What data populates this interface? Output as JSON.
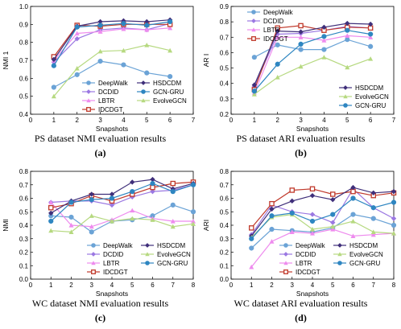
{
  "colors": {
    "DeepWalk": "#6ba3d6",
    "DCDID": "#9b78e2",
    "LBTR": "#ee8bee",
    "IDCDGT": "#c0392b",
    "HSDCDM": "#3f2f7a",
    "EvolveGCN": "#b6d980",
    "GCN-GRU": "#2e86c1"
  },
  "chart_data": [
    {
      "type": "line",
      "panel_label": "(a)",
      "caption": "PS dataset NMI evaluation results",
      "xlabel": "Snapshots",
      "ylabel": "NMI 1",
      "xlim": [
        0,
        7
      ],
      "ylim": [
        0.4,
        1.0
      ],
      "xticks": [
        "0",
        "1",
        "2",
        "3",
        "4",
        "5",
        "6",
        "7"
      ],
      "yticks": [
        "0.4",
        "0.5",
        "0.6",
        "0.7",
        "0.8",
        "0.9",
        "1.0"
      ],
      "legend_position": "bottom-right",
      "x": [
        1,
        2,
        3,
        4,
        5,
        6
      ],
      "series": [
        {
          "name": "DeepWalk",
          "values": [
            0.55,
            0.62,
            0.695,
            0.675,
            0.63,
            0.61
          ]
        },
        {
          "name": "DCDID",
          "values": [
            0.69,
            0.82,
            0.87,
            0.88,
            0.87,
            0.905
          ]
        },
        {
          "name": "LBTR",
          "values": [
            0.7,
            0.85,
            0.86,
            0.875,
            0.87,
            0.88
          ]
        },
        {
          "name": "IDCDGT",
          "values": [
            0.72,
            0.895,
            0.89,
            0.9,
            0.9,
            0.9
          ]
        },
        {
          "name": "HSDCDM",
          "values": [
            0.705,
            0.89,
            0.915,
            0.92,
            0.915,
            0.925
          ]
        },
        {
          "name": "EvolveGCN",
          "values": [
            0.5,
            0.655,
            0.75,
            0.755,
            0.785,
            0.755
          ]
        },
        {
          "name": "GCN-GRU",
          "values": [
            0.67,
            0.885,
            0.895,
            0.905,
            0.895,
            0.915
          ]
        }
      ]
    },
    {
      "type": "line",
      "panel_label": "(b)",
      "caption": "PS dataset ARI evaluation results",
      "xlabel": "Snapshots",
      "ylabel": "AR I",
      "xlim": [
        0,
        7
      ],
      "ylim": [
        0.2,
        0.9
      ],
      "xticks": [
        "0",
        "1",
        "2",
        "3",
        "4",
        "5",
        "6",
        "7"
      ],
      "yticks": [
        "0.2",
        "0.3",
        "0.4",
        "0.5",
        "0.6",
        "0.7",
        "0.8",
        "0.9"
      ],
      "legend_position": "split",
      "x": [
        1,
        2,
        3,
        4,
        5,
        6
      ],
      "series": [
        {
          "name": "DeepWalk",
          "values": [
            0.57,
            0.65,
            0.62,
            0.62,
            0.685,
            0.64
          ]
        },
        {
          "name": "DCDID",
          "values": [
            0.38,
            0.72,
            0.725,
            0.745,
            0.77,
            0.76
          ]
        },
        {
          "name": "LBTR",
          "values": [
            0.34,
            0.7,
            0.7,
            0.68,
            0.71,
            0.7
          ]
        },
        {
          "name": "IDCDGT",
          "values": [
            0.36,
            0.76,
            0.775,
            0.745,
            0.765,
            0.76
          ]
        },
        {
          "name": "HSDCDM",
          "values": [
            0.39,
            0.74,
            0.735,
            0.765,
            0.79,
            0.785
          ]
        },
        {
          "name": "EvolveGCN",
          "values": [
            0.33,
            0.44,
            0.51,
            0.57,
            0.505,
            0.56
          ]
        },
        {
          "name": "GCN-GRU",
          "values": [
            0.35,
            0.525,
            0.655,
            0.705,
            0.745,
            0.72
          ]
        }
      ]
    },
    {
      "type": "line",
      "panel_label": "(c)",
      "caption": "WC dataset NMI evaluation results",
      "xlabel": "Snapshots",
      "ylabel": "NMI",
      "xlim": [
        0,
        8
      ],
      "ylim": [
        0.0,
        0.8
      ],
      "xticks": [
        "0",
        "1",
        "2",
        "3",
        "4",
        "5",
        "6",
        "7",
        "8"
      ],
      "yticks": [
        "0.0",
        "0.1",
        "0.2",
        "0.3",
        "0.4",
        "0.5",
        "0.6",
        "0.7",
        "0.8"
      ],
      "legend_position": "bottom",
      "x": [
        1,
        2,
        3,
        4,
        5,
        6,
        7,
        8
      ],
      "series": [
        {
          "name": "DeepWalk",
          "values": [
            0.47,
            0.46,
            0.35,
            0.43,
            0.44,
            0.47,
            0.55,
            0.5
          ]
        },
        {
          "name": "DCDID",
          "values": [
            0.57,
            0.58,
            0.58,
            0.55,
            0.61,
            0.65,
            0.66,
            0.7
          ]
        },
        {
          "name": "LBTR",
          "values": [
            0.57,
            0.4,
            0.39,
            0.44,
            0.51,
            0.45,
            0.43,
            0.43
          ]
        },
        {
          "name": "IDCDGT",
          "values": [
            0.53,
            0.56,
            0.62,
            0.58,
            0.63,
            0.68,
            0.71,
            0.72
          ]
        },
        {
          "name": "HSDCDM",
          "values": [
            0.49,
            0.58,
            0.63,
            0.63,
            0.72,
            0.74,
            0.67,
            0.71
          ]
        },
        {
          "name": "EvolveGCN",
          "values": [
            0.36,
            0.35,
            0.47,
            0.43,
            0.45,
            0.44,
            0.39,
            0.41
          ]
        },
        {
          "name": "GCN-GRU",
          "values": [
            0.43,
            0.57,
            0.59,
            0.6,
            0.65,
            0.71,
            0.65,
            0.7
          ]
        }
      ]
    },
    {
      "type": "line",
      "panel_label": "(d)",
      "caption": "WC dataset ARI evaluation results",
      "xlabel": "Snapshots",
      "ylabel": "ARI",
      "xlim": [
        0,
        8
      ],
      "ylim": [
        0.0,
        0.8
      ],
      "xticks": [
        "0",
        "1",
        "2",
        "3",
        "4",
        "5",
        "6",
        "7",
        "8"
      ],
      "yticks": [
        "0.0",
        "0.1",
        "0.2",
        "0.3",
        "0.4",
        "0.5",
        "0.6",
        "0.7",
        "0.8"
      ],
      "legend_position": "bottom",
      "x": [
        1,
        2,
        3,
        4,
        5,
        6,
        7,
        8
      ],
      "series": [
        {
          "name": "DeepWalk",
          "values": [
            0.23,
            0.37,
            0.36,
            0.35,
            0.38,
            0.48,
            0.45,
            0.4
          ]
        },
        {
          "name": "DCDID",
          "values": [
            0.33,
            0.55,
            0.5,
            0.48,
            0.42,
            0.67,
            0.53,
            0.45
          ]
        },
        {
          "name": "LBTR",
          "values": [
            0.09,
            0.28,
            0.35,
            0.34,
            0.37,
            0.32,
            0.33,
            0.34
          ]
        },
        {
          "name": "IDCDGT",
          "values": [
            0.38,
            0.56,
            0.66,
            0.67,
            0.63,
            0.65,
            0.62,
            0.64
          ]
        },
        {
          "name": "HSDCDM",
          "values": [
            0.32,
            0.52,
            0.58,
            0.62,
            0.59,
            0.68,
            0.64,
            0.65
          ]
        },
        {
          "name": "EvolveGCN",
          "values": [
            0.31,
            0.46,
            0.48,
            0.37,
            0.39,
            0.43,
            0.35,
            0.34
          ]
        },
        {
          "name": "GCN-GRU",
          "values": [
            0.3,
            0.47,
            0.49,
            0.43,
            0.48,
            0.6,
            0.53,
            0.57
          ]
        }
      ]
    }
  ]
}
